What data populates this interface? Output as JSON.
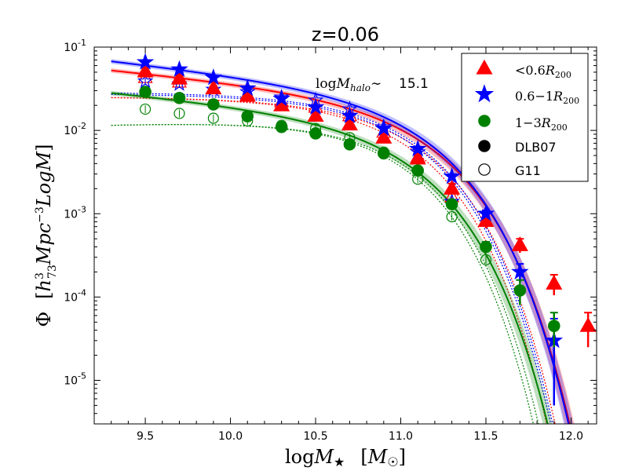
{
  "chart_data": {
    "type": "line",
    "title": "z=0.06",
    "xlabel": "logM★   [M☉]",
    "ylabel": "Φ  [h³₇₃ Mpc⁻³ LogM]",
    "xlim": [
      9.2,
      12.15
    ],
    "ylim": [
      3e-06,
      0.1
    ],
    "yscale": "log",
    "xticks": [
      9.5,
      10.0,
      10.5,
      11.0,
      11.5,
      12.0
    ],
    "xtick_labels": [
      "9.5",
      "10.0",
      "10.5",
      "11.0",
      "11.5",
      "12.0"
    ],
    "yticks": [
      1e-05,
      0.0001,
      0.001,
      0.01,
      0.1
    ],
    "ytick_labels": [
      "10-5",
      "10-4",
      "10-3",
      "10-2",
      "10-1"
    ],
    "grid": false,
    "legend_position": "top-right",
    "annotation": {
      "label": "logMhalo ~",
      "value": "15.1"
    },
    "legend": [
      {
        "label": "<0.6R200",
        "marker": "triangle",
        "color": "#ff0000",
        "filled": true
      },
      {
        "label": "0.6−1R200",
        "marker": "star",
        "color": "#0000ff",
        "filled": true
      },
      {
        "label": "1−3R200",
        "marker": "circle",
        "color": "#008000",
        "filled": true
      },
      {
        "label": "DLB07",
        "marker": "circle",
        "color": "#000000",
        "filled": true
      },
      {
        "label": "G11",
        "marker": "circle",
        "color": "#000000",
        "filled": false
      }
    ],
    "series": [
      {
        "name": "<0.6R200",
        "color": "#ff0000",
        "marker": "triangle",
        "x": [
          9.5,
          9.7,
          9.9,
          10.1,
          10.3,
          10.5,
          10.7,
          10.9,
          11.1,
          11.3,
          11.5,
          11.7,
          11.9,
          12.1
        ],
        "y": [
          0.051,
          0.042,
          0.032,
          0.026,
          0.02,
          0.015,
          0.0118,
          0.0082,
          0.0046,
          0.002,
          0.00082,
          0.00042,
          0.000145,
          4.5e-05
        ],
        "err": [
          0.003,
          0.003,
          0.002,
          0.0015,
          0.001,
          0.001,
          0.0008,
          0.0006,
          0.0004,
          0.0003,
          0.00015,
          8e-05,
          4e-05,
          2e-05
        ],
        "fit": {
          "phi_star": 0.0103,
          "m_star": 11.06,
          "alpha": -1.2
        },
        "dlb07_fit": {
          "phi_star": 0.011,
          "m_star": 10.95,
          "alpha": -1.0
        },
        "g11_fit": {
          "phi_star": 0.011,
          "m_star": 10.9,
          "alpha": -1.0
        },
        "g11_points": {
          "x": [
            9.5,
            9.7,
            9.9,
            10.1,
            10.3,
            10.5,
            10.7,
            10.9,
            11.1,
            11.3
          ],
          "y": [
            0.043,
            0.038,
            0.032,
            0.027,
            0.022,
            0.019,
            0.015,
            0.0095,
            0.0048,
            0.0016
          ]
        }
      },
      {
        "name": "0.6−1R200",
        "color": "#0000ff",
        "marker": "star",
        "x": [
          9.5,
          9.7,
          9.9,
          10.1,
          10.3,
          10.5,
          10.7,
          10.9,
          11.1,
          11.3,
          11.5,
          11.7,
          11.9
        ],
        "y": [
          0.066,
          0.054,
          0.043,
          0.032,
          0.024,
          0.019,
          0.015,
          0.0105,
          0.006,
          0.0028,
          0.001,
          0.0002,
          3e-05
        ],
        "err": [
          0.003,
          0.003,
          0.002,
          0.0015,
          0.001,
          0.001,
          0.0008,
          0.0006,
          0.0004,
          0.0002,
          0.0001,
          5e-05,
          2.5e-05
        ],
        "fit": {
          "phi_star": 0.0118,
          "m_star": 11.05,
          "alpha": -1.23
        },
        "dlb07_fit": {
          "phi_star": 0.0125,
          "m_star": 10.93,
          "alpha": -1.0
        },
        "g11_fit": {
          "phi_star": 0.012,
          "m_star": 10.92,
          "alpha": -1.0
        },
        "g11_points": {
          "x": [
            9.5,
            9.7,
            9.9,
            10.1,
            10.3,
            10.5,
            10.7,
            10.9,
            11.1,
            11.3
          ],
          "y": [
            0.039,
            0.036,
            0.031,
            0.029,
            0.025,
            0.023,
            0.018,
            0.011,
            0.0055,
            0.0014
          ]
        }
      },
      {
        "name": "1−3R200",
        "color": "#008000",
        "marker": "circle",
        "x": [
          9.5,
          9.7,
          9.9,
          10.1,
          10.3,
          10.5,
          10.7,
          10.9,
          11.1,
          11.3,
          11.5,
          11.7,
          11.9
        ],
        "y": [
          0.029,
          0.0245,
          0.0205,
          0.0148,
          0.011,
          0.0092,
          0.0068,
          0.0053,
          0.0033,
          0.0013,
          0.0004,
          0.00012,
          4.5e-05
        ],
        "err": [
          0.0015,
          0.0012,
          0.001,
          0.0008,
          0.0006,
          0.0005,
          0.0004,
          0.0003,
          0.0002,
          0.00012,
          6e-05,
          4e-05,
          2e-05
        ],
        "fit": {
          "phi_star": 0.0058,
          "m_star": 10.96,
          "alpha": -1.2
        },
        "dlb07_fit": {
          "phi_star": 0.0066,
          "m_star": 10.87,
          "alpha": -0.93
        },
        "g11_fit": {
          "phi_star": 0.0066,
          "m_star": 10.84,
          "alpha": -0.93
        },
        "g11_points": {
          "x": [
            9.5,
            9.7,
            9.9,
            10.1,
            10.3,
            10.5,
            10.7,
            10.9,
            11.1,
            11.3,
            11.5
          ],
          "y": [
            0.018,
            0.016,
            0.014,
            0.013,
            0.0115,
            0.0105,
            0.0082,
            0.0055,
            0.0026,
            0.00092,
            0.00028
          ]
        }
      }
    ]
  }
}
